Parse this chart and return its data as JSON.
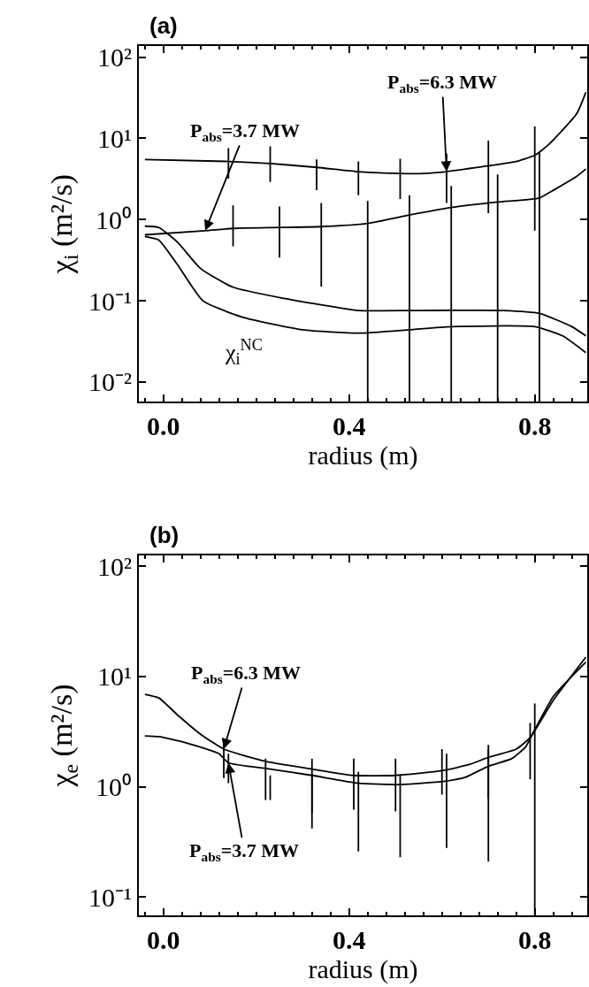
{
  "chart_data": [
    {
      "type": "line",
      "title": "(a)",
      "xlabel": "radius (m)",
      "ylabel": "χ$_{i}$ (m²/s)",
      "log": "y",
      "marker": "none",
      "line_style": "solid",
      "xlim": [
        -0.053,
        0.913
      ],
      "ylim": [
        0.0057,
        138
      ],
      "xticks": [
        {
          "value": 0,
          "label": "0.0"
        },
        {
          "value": 0.4,
          "label": "0.4"
        },
        {
          "value": 0.8,
          "label": "0.8"
        }
      ],
      "yticks": [
        {
          "value": 0.01,
          "label": "10⁻²"
        },
        {
          "value": 0.1,
          "label": "10⁻¹"
        },
        {
          "value": 1,
          "label": "10⁰"
        },
        {
          "value": 10,
          "label": "10¹"
        },
        {
          "value": 100,
          "label": "10²"
        }
      ],
      "annotations": [
        {
          "text": "P$_{abs}$=6.3 MW",
          "x": 0.61,
          "y": 3.9
        },
        {
          "text": "P$_{abs}$=3.7 MW",
          "x": 0.09,
          "y": 0.73
        },
        "χ$_{i}$$^{NC}$"
      ],
      "series": [
        {
          "color": "#000000",
          "x": [
            -0.04,
            0.14,
            0.23,
            0.33,
            0.42,
            0.51,
            0.56,
            0.61,
            0.7,
            0.76,
            0.8,
            0.83,
            0.89,
            0.91
          ],
          "values": [
            5.5,
            5.2,
            4.9,
            4.4,
            3.9,
            3.7,
            3.7,
            3.9,
            4.6,
            5.2,
            6.2,
            8.4,
            20,
            37
          ],
          "errors": [
            null,
            [
              3.2,
              7.6
            ],
            [
              2.9,
              8.0
            ],
            [
              2.3,
              5.5
            ],
            [
              2.0,
              5.2
            ],
            [
              1.8,
              5.6
            ],
            null,
            [
              1.6,
              6.5
            ],
            [
              1.2,
              9.4
            ],
            null,
            [
              0.73,
              14
            ],
            null,
            null,
            null
          ]
        },
        {
          "color": "#000000",
          "x": [
            -0.04,
            0.09,
            0.15,
            0.25,
            0.34,
            0.44,
            0.53,
            0.62,
            0.72,
            0.81,
            0.84,
            0.89,
            0.91
          ],
          "values": [
            0.65,
            0.73,
            0.78,
            0.8,
            0.82,
            0.9,
            1.14,
            1.41,
            1.65,
            1.85,
            2.3,
            3.4,
            4.2
          ],
          "errors": [
            null,
            null,
            [
              0.47,
              1.5
            ],
            [
              0.34,
              1.45
            ],
            [
              0.15,
              1.6
            ],
            [
              0.0057,
              1.7
            ],
            [
              0.0057,
              2.0
            ],
            [
              0.0057,
              2.6
            ],
            [
              0.0057,
              3.6
            ],
            [
              0.0057,
              6.8
            ],
            null,
            null,
            null
          ]
        },
        {
          "color": "#000000",
          "x": [
            -0.04,
            -0.01,
            0.03,
            0.08,
            0.15,
            0.26,
            0.38,
            0.42,
            0.55,
            0.73,
            0.81,
            0.88,
            0.91
          ],
          "values": [
            0.83,
            0.8,
            0.53,
            0.25,
            0.147,
            0.107,
            0.082,
            0.076,
            0.076,
            0.076,
            0.07,
            0.048,
            0.037
          ]
        },
        {
          "color": "#000000",
          "x": [
            -0.04,
            -0.01,
            0.03,
            0.085,
            0.17,
            0.3,
            0.42,
            0.53,
            0.62,
            0.8,
            0.86,
            0.91
          ],
          "values": [
            0.62,
            0.56,
            0.28,
            0.1,
            0.063,
            0.044,
            0.04,
            0.044,
            0.048,
            0.048,
            0.037,
            0.023
          ]
        }
      ]
    },
    {
      "type": "line",
      "title": "(b)",
      "xlabel": "radius (m)",
      "ylabel": "χ$_{e}$ (m²/s)",
      "log": "y",
      "marker": "none",
      "line_style": "solid",
      "xlim": [
        -0.053,
        0.913
      ],
      "ylim": [
        0.068,
        126
      ],
      "xticks": [
        {
          "value": 0,
          "label": "0.0"
        },
        {
          "value": 0.4,
          "label": "0.4"
        },
        {
          "value": 0.8,
          "label": "0.8"
        }
      ],
      "yticks": [
        {
          "value": 0.1,
          "label": "10⁻¹"
        },
        {
          "value": 1,
          "label": "10⁰"
        },
        {
          "value": 10,
          "label": "10¹"
        },
        {
          "value": 100,
          "label": "10²"
        }
      ],
      "annotations": [
        {
          "text": "P$_{abs}$=6.3 MW",
          "x": 0.13,
          "y": 2.2
        },
        {
          "text": "P$_{abs}$=3.7 MW",
          "x": 0.14,
          "y": 1.65
        }
      ],
      "series": [
        {
          "color": "#000000",
          "x": [
            -0.04,
            -0.01,
            0.03,
            0.08,
            0.13,
            0.22,
            0.32,
            0.41,
            0.5,
            0.6,
            0.66,
            0.7,
            0.76,
            0.79,
            0.84,
            0.91
          ],
          "values": [
            6.9,
            6.4,
            4.5,
            3.0,
            2.2,
            1.7,
            1.45,
            1.27,
            1.27,
            1.4,
            1.6,
            1.85,
            2.2,
            2.8,
            6.1,
            15
          ],
          "errors": [
            null,
            null,
            null,
            null,
            [
              1.2,
              2.6
            ],
            [
              0.76,
              1.8
            ],
            [
              0.58,
              1.8
            ],
            [
              0.62,
              1.8
            ],
            [
              0.6,
              1.8
            ],
            [
              0.85,
              2.2
            ],
            null,
            [
              0.79,
              2.2
            ],
            null,
            [
              1.17,
              3.8
            ],
            null,
            null
          ]
        },
        {
          "color": "#000000",
          "x": [
            -0.04,
            -0.01,
            0.05,
            0.12,
            0.14,
            0.23,
            0.32,
            0.42,
            0.51,
            0.61,
            0.65,
            0.7,
            0.75,
            0.78,
            0.8,
            0.84,
            0.91
          ],
          "values": [
            2.9,
            2.85,
            2.5,
            2.0,
            1.65,
            1.45,
            1.27,
            1.08,
            1.05,
            1.13,
            1.22,
            1.54,
            1.8,
            2.3,
            3.3,
            6.6,
            13.5
          ],
          "errors": [
            null,
            null,
            null,
            null,
            [
              1.08,
              2.0
            ],
            [
              0.76,
              1.27
            ],
            [
              0.42,
              1.3
            ],
            [
              0.26,
              1.37
            ],
            [
              0.23,
              1.3
            ],
            [
              0.28,
              2.0
            ],
            null,
            [
              0.21,
              2.4
            ],
            null,
            null,
            [
              0.068,
              5.7
            ],
            null,
            null
          ]
        }
      ]
    }
  ]
}
